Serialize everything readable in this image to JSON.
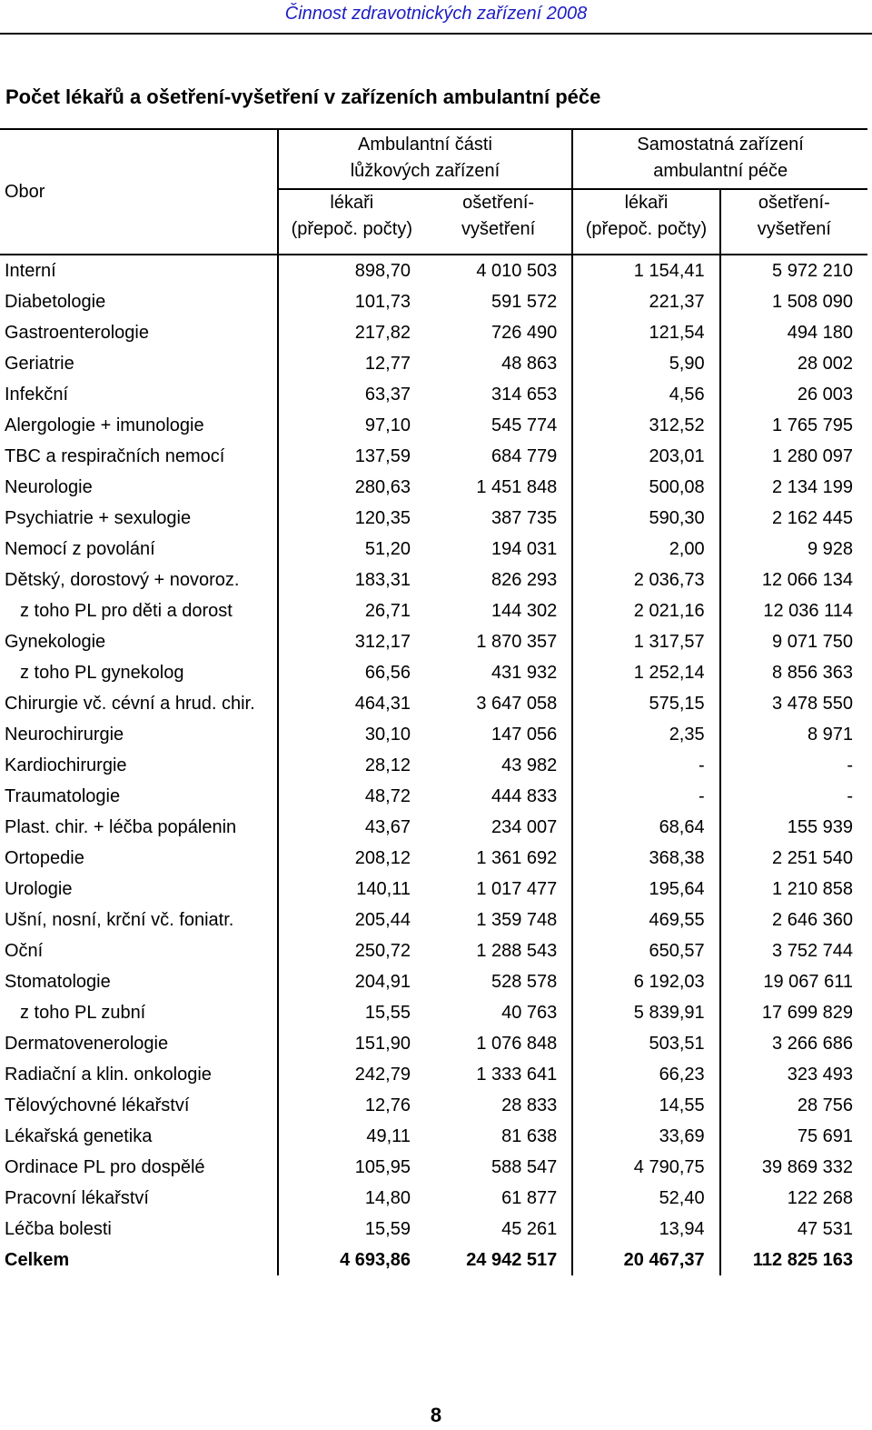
{
  "running_header": "Činnost zdravotnických zařízení 2008",
  "title": "Počet lékařů a ošetření-vyšetření v zařízeních ambulantní péče",
  "table": {
    "obor_header": "Obor",
    "group1": {
      "line1": "Ambulantní části",
      "line2": "lůžkových zařízení"
    },
    "group2": {
      "line1": "Samostatná zařízení",
      "line2": "ambulantní péče"
    },
    "sub": {
      "lekari_line1": "lékaři",
      "lekari_line2": "(přepoč. počty)",
      "osetreni_line1": "ošetření-",
      "osetreni_line2": "vyšetření"
    },
    "rows": [
      {
        "name": "Interní",
        "v1": "898,70",
        "v2": "4 010 503",
        "v3": "1 154,41",
        "v4": "5 972 210"
      },
      {
        "name": "Diabetologie",
        "v1": "101,73",
        "v2": "591 572",
        "v3": "221,37",
        "v4": "1 508 090"
      },
      {
        "name": "Gastroenterologie",
        "v1": "217,82",
        "v2": "726 490",
        "v3": "121,54",
        "v4": "494 180"
      },
      {
        "name": "Geriatrie",
        "v1": "12,77",
        "v2": "48 863",
        "v3": "5,90",
        "v4": "28 002"
      },
      {
        "name": "Infekční",
        "v1": "63,37",
        "v2": "314 653",
        "v3": "4,56",
        "v4": "26 003"
      },
      {
        "name": "Alergologie + imunologie",
        "v1": "97,10",
        "v2": "545 774",
        "v3": "312,52",
        "v4": "1 765 795"
      },
      {
        "name": "TBC a respiračních nemocí",
        "v1": "137,59",
        "v2": "684 779",
        "v3": "203,01",
        "v4": "1 280 097"
      },
      {
        "name": "Neurologie",
        "v1": "280,63",
        "v2": "1 451 848",
        "v3": "500,08",
        "v4": "2 134 199"
      },
      {
        "name": "Psychiatrie + sexulogie",
        "v1": "120,35",
        "v2": "387 735",
        "v3": "590,30",
        "v4": "2 162 445"
      },
      {
        "name": "Nemocí z povolání",
        "v1": "51,20",
        "v2": "194 031",
        "v3": "2,00",
        "v4": "9 928"
      },
      {
        "name": "Dětský, dorostový + novoroz.",
        "v1": "183,31",
        "v2": "826 293",
        "v3": "2 036,73",
        "v4": "12 066 134"
      },
      {
        "name": "z toho PL pro děti a dorost",
        "v1": "26,71",
        "v2": "144 302",
        "v3": "2 021,16",
        "v4": "12 036 114"
      },
      {
        "name": "Gynekologie",
        "v1": "312,17",
        "v2": "1 870 357",
        "v3": "1 317,57",
        "v4": "9 071 750"
      },
      {
        "name": "z toho PL gynekolog",
        "v1": "66,56",
        "v2": "431 932",
        "v3": "1 252,14",
        "v4": "8 856 363"
      },
      {
        "name": "Chirurgie vč. cévní a hrud. chir.",
        "v1": "464,31",
        "v2": "3 647 058",
        "v3": "575,15",
        "v4": "3 478 550"
      },
      {
        "name": "Neurochirurgie",
        "v1": "30,10",
        "v2": "147 056",
        "v3": "2,35",
        "v4": "8 971"
      },
      {
        "name": "Kardiochirurgie",
        "v1": "28,12",
        "v2": "43 982",
        "v3": "-",
        "v4": "-"
      },
      {
        "name": "Traumatologie",
        "v1": "48,72",
        "v2": "444 833",
        "v3": "-",
        "v4": "-"
      },
      {
        "name": "Plast. chir. + léčba popálenin",
        "v1": "43,67",
        "v2": "234 007",
        "v3": "68,64",
        "v4": "155 939"
      },
      {
        "name": "Ortopedie",
        "v1": "208,12",
        "v2": "1 361 692",
        "v3": "368,38",
        "v4": "2 251 540"
      },
      {
        "name": "Urologie",
        "v1": "140,11",
        "v2": "1 017 477",
        "v3": "195,64",
        "v4": "1 210 858"
      },
      {
        "name": "Ušní, nosní, krční vč. foniatr.",
        "v1": "205,44",
        "v2": "1 359 748",
        "v3": "469,55",
        "v4": "2 646 360"
      },
      {
        "name": "Oční",
        "v1": "250,72",
        "v2": "1 288 543",
        "v3": "650,57",
        "v4": "3 752 744"
      },
      {
        "name": "Stomatologie",
        "v1": "204,91",
        "v2": "528 578",
        "v3": "6 192,03",
        "v4": "19 067 611"
      },
      {
        "name": "z toho PL zubní",
        "v1": "15,55",
        "v2": "40 763",
        "v3": "5 839,91",
        "v4": "17 699 829"
      },
      {
        "name": "Dermatovenerologie",
        "v1": "151,90",
        "v2": "1 076 848",
        "v3": "503,51",
        "v4": "3 266 686"
      },
      {
        "name": "Radiační a klin. onkologie",
        "v1": "242,79",
        "v2": "1 333 641",
        "v3": "66,23",
        "v4": "323 493"
      },
      {
        "name": "Tělovýchovné lékařství",
        "v1": "12,76",
        "v2": "28 833",
        "v3": "14,55",
        "v4": "28 756"
      },
      {
        "name": "Lékařská genetika",
        "v1": "49,11",
        "v2": "81 638",
        "v3": "33,69",
        "v4": "75 691"
      },
      {
        "name": "Ordinace PL pro dospělé",
        "v1": "105,95",
        "v2": "588 547",
        "v3": "4 790,75",
        "v4": "39 869 332"
      },
      {
        "name": "Pracovní lékařství",
        "v1": "14,80",
        "v2": "61 877",
        "v3": "52,40",
        "v4": "122 268"
      },
      {
        "name": "Léčba bolesti",
        "v1": "15,59",
        "v2": "45 261",
        "v3": "13,94",
        "v4": "47 531"
      }
    ],
    "total": {
      "name": "Celkem",
      "v1": "4 693,86",
      "v2": "24 942 517",
      "v3": "20 467,37",
      "v4": "112 825 163"
    }
  },
  "page_number": "8"
}
